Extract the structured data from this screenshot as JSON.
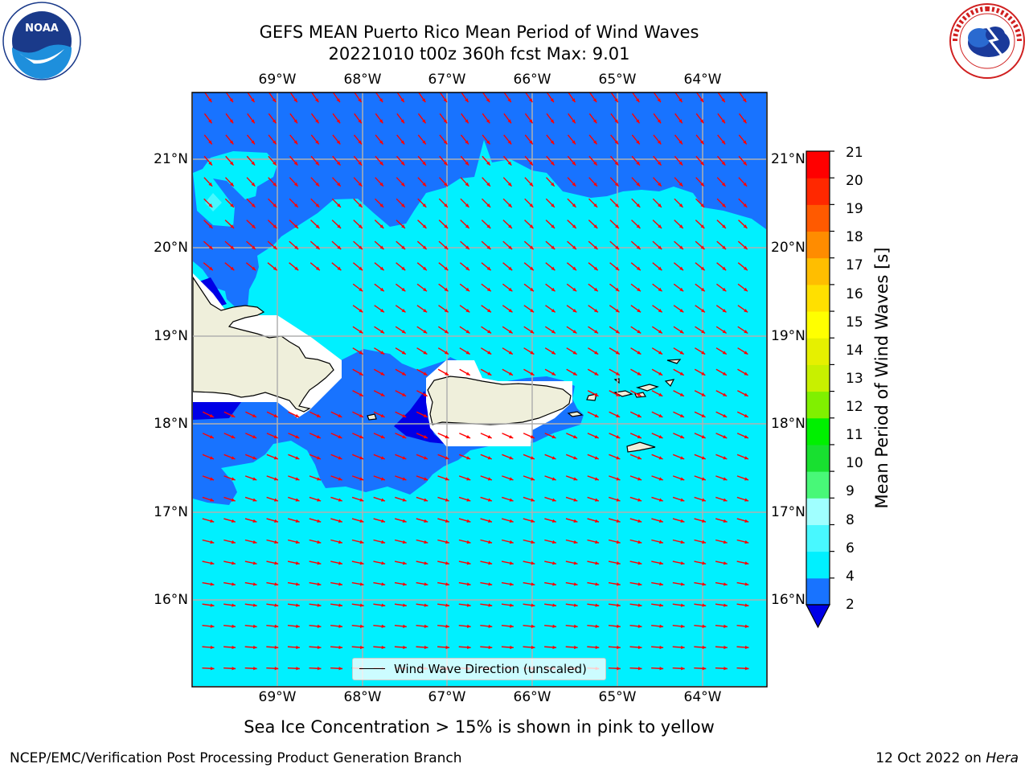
{
  "title": {
    "line1": "GEFS MEAN Puerto Rico Mean Period of Wind Waves",
    "line2": "20221010 t00z 360h fcst   Max: 9.01"
  },
  "logos": {
    "left": "noaa-logo",
    "left_text": "NOAA",
    "right": "national-weather-service-logo"
  },
  "map": {
    "lon_labels": [
      "69°W",
      "68°W",
      "67°W",
      "66°W",
      "65°W",
      "64°W"
    ],
    "lat_labels": [
      "21°N",
      "20°N",
      "19°N",
      "18°N",
      "17°N",
      "16°N"
    ],
    "land_color": "#efefdb",
    "arrow_color": "#ff0000",
    "gridline_color": "#b0b0b0"
  },
  "colorbar": {
    "title": "Mean Period of Wind Waves [s]",
    "ticks": [
      "21",
      "20",
      "19",
      "18",
      "17",
      "16",
      "15",
      "14",
      "13",
      "12",
      "11",
      "10",
      "9",
      "8",
      "6",
      "4",
      "2"
    ],
    "colors": [
      "#0000e6",
      "#1873ff",
      "#00f0ff",
      "#48f8ff",
      "#a0ffff",
      "#48f878",
      "#18e030",
      "#00f000",
      "#80f000",
      "#c8f000",
      "#e6f000",
      "#ffff00",
      "#ffe000",
      "#ffbe00",
      "#ff8c00",
      "#ff5a00",
      "#ff2800",
      "#ff0000"
    ]
  },
  "legend": {
    "label": "Wind Wave Direction (unscaled)"
  },
  "notes": {
    "ice": "Sea Ice Concentration > 15% is shown in pink to yellow"
  },
  "footer": {
    "left": "NCEP/EMC/Verification Post Processing Product Generation Branch",
    "right_prefix": "12 Oct 2022 on ",
    "right_italic": "Hera"
  }
}
